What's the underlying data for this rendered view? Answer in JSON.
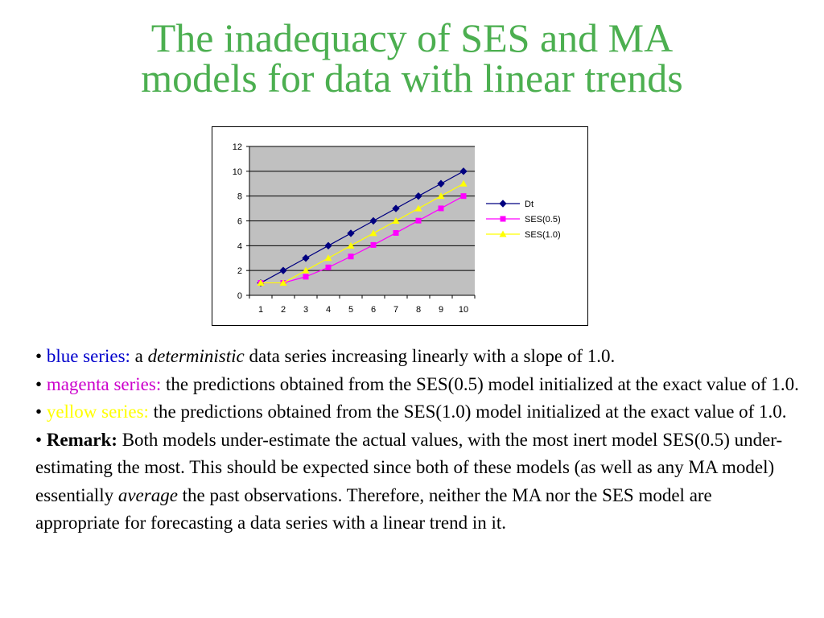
{
  "title": {
    "line1": "The inadequacy of SES and MA",
    "line2": "models for data with linear trends",
    "color": "#4caf50"
  },
  "chart_data": {
    "type": "line",
    "x": [
      1,
      2,
      3,
      4,
      5,
      6,
      7,
      8,
      9,
      10
    ],
    "series": [
      {
        "name": "Dt",
        "color": "#000080",
        "marker": "diamond",
        "values": [
          1,
          2,
          3,
          4,
          5,
          6,
          7,
          8,
          9,
          10
        ]
      },
      {
        "name": "SES(0.5)",
        "color": "#ff00ff",
        "marker": "square",
        "values": [
          1,
          1,
          1.5,
          2.25,
          3.13,
          4.06,
          5.03,
          6.02,
          7.01,
          8.0
        ]
      },
      {
        "name": "SES(1.0)",
        "color": "#ffff00",
        "marker": "triangle",
        "values": [
          1,
          1,
          2,
          3,
          4,
          5,
          6,
          7,
          8,
          9
        ]
      }
    ],
    "ylim": [
      0,
      12
    ],
    "yticks": [
      0,
      2,
      4,
      6,
      8,
      10,
      12
    ],
    "xticks": [
      "1",
      "2",
      "3",
      "4",
      "5",
      "6",
      "7",
      "8",
      "9",
      "10"
    ],
    "plot_bg": "#c0c0c0",
    "grid": true,
    "legend": "right"
  },
  "bullets": {
    "b1": {
      "colored": "blue series:",
      "a": " a ",
      "italic": "deterministic",
      "rest": " data series increasing linearly with a slope of 1.0.",
      "color": "#0000cc"
    },
    "b2": {
      "colored": "magenta series:",
      "rest": " the predictions obtained from the SES(0.5) model initialized at the exact value of 1.0.",
      "color": "#cc00cc"
    },
    "b3": {
      "colored": "yellow series:",
      "rest": " the predictions obtained from the SES(1.0) model initialized at the exact value of 1.0.",
      "color": "#ffff00"
    },
    "b4": {
      "bold": "Remark:",
      "rest1": " Both models under-estimate the actual values, with the most inert model SES(0.5) under-estimating the most. This should be expected since both of these models (as well as any MA model) essentially ",
      "italic": "average",
      "rest2": " the past observations. Therefore, neither the MA nor the SES model are appropriate for forecasting a data series with a linear trend in it."
    }
  }
}
